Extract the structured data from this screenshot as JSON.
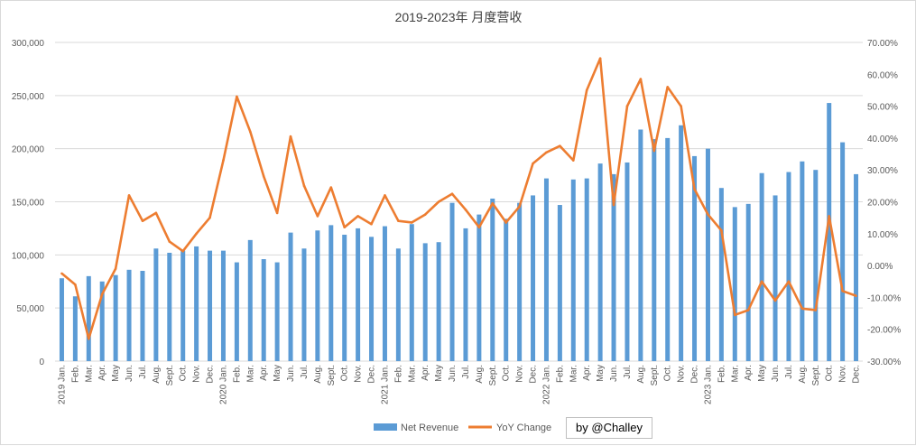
{
  "chart_data": {
    "type": "bar+line",
    "title": "2019-2023年  月度营收",
    "categories": [
      "2019 Jan.",
      "Feb.",
      "Mar.",
      "Apr.",
      "May",
      "Jun.",
      "Jul.",
      "Aug.",
      "Sept.",
      "Oct.",
      "Nov.",
      "Dec.",
      "2020 Jan.",
      "Feb.",
      "Mar.",
      "Apr.",
      "May",
      "Jun.",
      "Jul.",
      "Aug.",
      "Sept.",
      "Oct.",
      "Nov.",
      "Dec.",
      "2021 Jan.",
      "Feb.",
      "Mar.",
      "Apr.",
      "May",
      "Jun.",
      "Jul.",
      "Aug.",
      "Sept.",
      "Oct.",
      "Nov.",
      "Dec.",
      "2022 Jan.",
      "Feb.",
      "Mar.",
      "Apr.",
      "May",
      "Jun.",
      "Jul.",
      "Aug.",
      "Sept.",
      "Oct.",
      "Nov.",
      "Dec.",
      "2023 Jan.",
      "Feb.",
      "Mar.",
      "Apr.",
      "May",
      "Jun.",
      "Jul.",
      "Aug.",
      "Sept.",
      "Oct.",
      "Nov.",
      "Dec."
    ],
    "series": [
      {
        "name": "Net Revenue",
        "kind": "bar",
        "axis": "left",
        "color": "#5b9bd5",
        "values": [
          78000,
          61000,
          80000,
          75000,
          81000,
          86000,
          85000,
          106000,
          102000,
          104000,
          108000,
          104000,
          104000,
          93000,
          114000,
          96000,
          93000,
          121000,
          106000,
          123000,
          128000,
          119000,
          125000,
          117000,
          127000,
          106000,
          129000,
          111000,
          112000,
          149000,
          125000,
          138000,
          153000,
          134000,
          149000,
          156000,
          172000,
          147000,
          171000,
          172000,
          186000,
          176000,
          187000,
          218000,
          209000,
          210000,
          222000,
          193000,
          200000,
          163000,
          145000,
          148000,
          177000,
          156000,
          178000,
          188000,
          180000,
          243000,
          206000,
          176000
        ]
      },
      {
        "name": "YoY Change",
        "kind": "line",
        "axis": "right",
        "color": "#ed7d31",
        "values": [
          -2.5,
          -6.0,
          -23.0,
          -9.0,
          -1.0,
          22.0,
          14.0,
          16.5,
          7.5,
          4.5,
          10.0,
          15.0,
          33.0,
          53.0,
          42.0,
          28.0,
          16.5,
          40.5,
          25.0,
          15.5,
          24.5,
          12.0,
          15.5,
          13.0,
          22.0,
          14.0,
          13.5,
          16.0,
          20.0,
          22.5,
          17.5,
          12.0,
          19.5,
          13.5,
          18.5,
          32.0,
          35.5,
          37.5,
          33.0,
          55.0,
          65.0,
          19.0,
          50.0,
          58.5,
          36.0,
          56.0,
          50.0,
          24.0,
          16.0,
          11.0,
          -15.5,
          -14.0,
          -5.0,
          -11.0,
          -5.0,
          -13.5,
          -14.0,
          15.5,
          -8.0,
          -9.5
        ]
      }
    ],
    "y_left": {
      "min": 0,
      "max": 300000,
      "ticks": [
        "0",
        "50,000",
        "100,000",
        "150,000",
        "200,000",
        "250,000",
        "300,000"
      ]
    },
    "y_right": {
      "min": -30,
      "max": 70,
      "ticks": [
        "-30.00%",
        "-20.00%",
        "-10.00%",
        "0.00%",
        "10.00%",
        "20.00%",
        "30.00%",
        "40.00%",
        "50.00%",
        "60.00%",
        "70.00%"
      ]
    },
    "grid": true,
    "legend_position": "bottom-center",
    "legend": [
      "Net Revenue",
      "YoY Change"
    ]
  },
  "watermark": "by @Challey"
}
